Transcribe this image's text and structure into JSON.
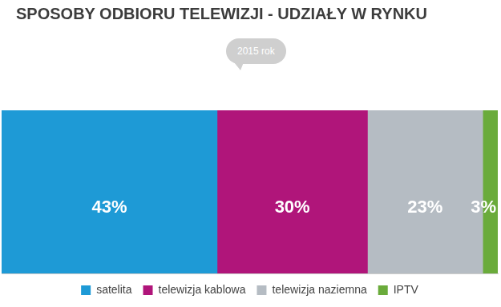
{
  "chart_data": {
    "type": "bar",
    "title": "SPOSOBY ODBIORU TELEWIZJI - UDZIAŁY W RYNKU",
    "annotation": "2015 rok",
    "orientation": "horizontal",
    "stacked": true,
    "categories": [
      null
    ],
    "series": [
      {
        "name": "satelita",
        "color": "#1e9ad6",
        "values": [
          43
        ],
        "value_labels": [
          "43%"
        ]
      },
      {
        "name": "telewizja kablowa",
        "color": "#b0157a",
        "values": [
          30
        ],
        "value_labels": [
          "30%"
        ]
      },
      {
        "name": "telewizja naziemna",
        "color": "#b5bcc3",
        "values": [
          23
        ],
        "value_labels": [
          "23%"
        ]
      },
      {
        "name": "IPTV",
        "color": "#6aab3b",
        "values": [
          3
        ],
        "value_labels": [
          "3%"
        ]
      }
    ],
    "xlim": [
      0,
      99
    ],
    "tick_labels": false,
    "grid": false,
    "legend": "bottom",
    "data_labels": true
  }
}
